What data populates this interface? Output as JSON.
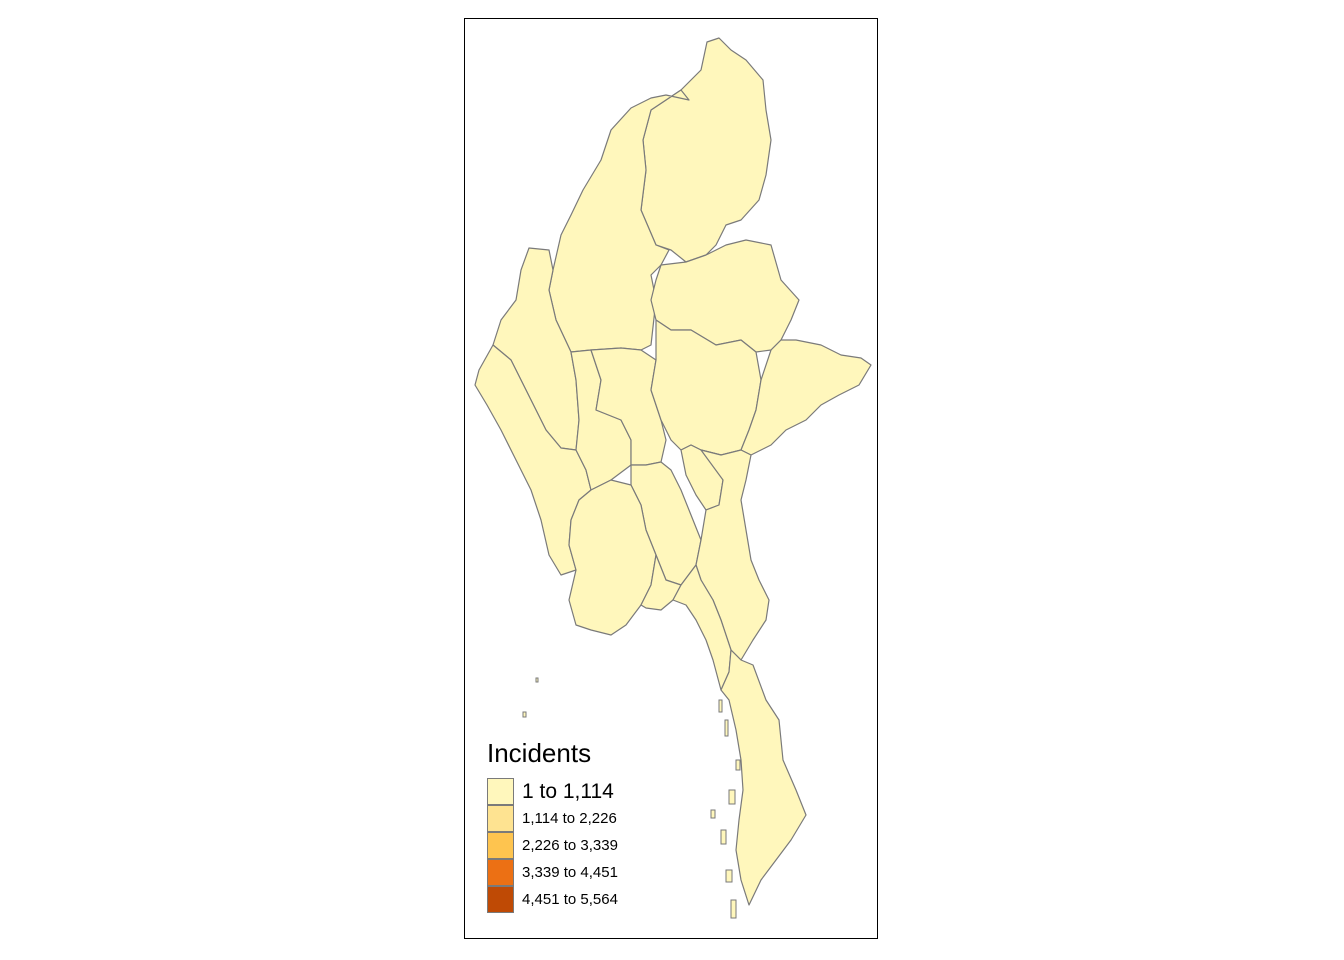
{
  "legend": {
    "title": "Incidents",
    "classes": [
      {
        "label": "1 to 1,114",
        "color": "#FFF7BC"
      },
      {
        "label": "1,114 to 2,226",
        "color": "#FEE391"
      },
      {
        "label": "2,226 to 3,339",
        "color": "#FEC44F"
      },
      {
        "label": "3,339 to 4,451",
        "color": "#EC7014"
      },
      {
        "label": "4,451 to 5,564",
        "color": "#BF4A05"
      }
    ]
  },
  "colors": {
    "region_fill": "#FFF7BC",
    "region_border": "#7A7A7A",
    "frame": "#000000"
  }
}
